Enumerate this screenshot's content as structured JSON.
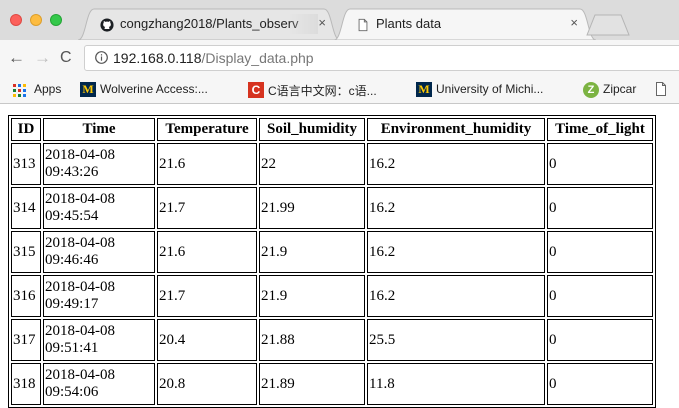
{
  "window": {
    "tabs": [
      {
        "title": "congzhang2018/Plants_observ",
        "icon": "github-icon",
        "active": false
      },
      {
        "title": "Plants data",
        "icon": "page-icon",
        "active": true
      }
    ],
    "close_glyph": "×"
  },
  "toolbar": {
    "back_glyph": "←",
    "forward_glyph": "→",
    "reload_glyph": "C",
    "url_host": "192.168.0.118",
    "url_path": "/Display_data.php"
  },
  "bookmarks": [
    {
      "label": "Apps",
      "icon": "apps-grid-icon"
    },
    {
      "label": "Wolverine Access:...",
      "icon": "umich-m-icon",
      "badge": "M"
    },
    {
      "label": "C语言中文网：c语...",
      "icon": "c-language-icon",
      "badge": "C"
    },
    {
      "label": "University of Michi...",
      "icon": "umich-m-icon",
      "badge": "M"
    },
    {
      "label": "Zipcar",
      "icon": "zipcar-icon",
      "badge": "Z"
    }
  ],
  "table": {
    "headers": [
      "ID",
      "Time",
      "Temperature",
      "Soil_humidity",
      "Environment_humidity",
      "Time_of_light"
    ],
    "rows": [
      {
        "id": "313",
        "date": "2018-04-08",
        "clock": "09:43:26",
        "temperature": "21.6",
        "soil": "22",
        "env": "16.2",
        "light": "0"
      },
      {
        "id": "314",
        "date": "2018-04-08",
        "clock": "09:45:54",
        "temperature": "21.7",
        "soil": "21.99",
        "env": "16.2",
        "light": "0"
      },
      {
        "id": "315",
        "date": "2018-04-08",
        "clock": "09:46:46",
        "temperature": "21.6",
        "soil": "21.9",
        "env": "16.2",
        "light": "0"
      },
      {
        "id": "316",
        "date": "2018-04-08",
        "clock": "09:49:17",
        "temperature": "21.7",
        "soil": "21.9",
        "env": "16.2",
        "light": "0"
      },
      {
        "id": "317",
        "date": "2018-04-08",
        "clock": "09:51:41",
        "temperature": "20.4",
        "soil": "21.88",
        "env": "25.5",
        "light": "0"
      },
      {
        "id": "318",
        "date": "2018-04-08",
        "clock": "09:54:06",
        "temperature": "20.8",
        "soil": "21.89",
        "env": "11.8",
        "light": "0"
      }
    ]
  }
}
